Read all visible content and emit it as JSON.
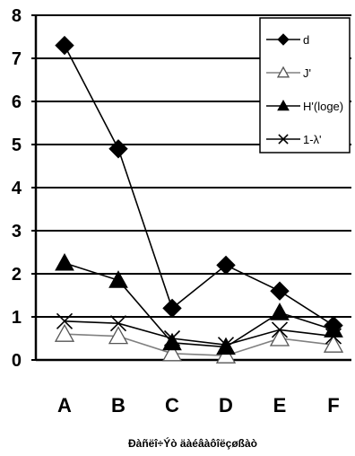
{
  "chart_data": {
    "type": "line",
    "categories": [
      "A",
      "B",
      "C",
      "D",
      "E",
      "F"
    ],
    "ylim": [
      0,
      8
    ],
    "yticks": [
      "0",
      "1",
      "2",
      "3",
      "4",
      "5",
      "6",
      "7",
      "8"
    ],
    "grid": "horizontal",
    "legend_position": "top-right",
    "xlabel": "Ðàñëî÷Ýò äàéâàôîëçøßàò",
    "ylabel": "",
    "title": "",
    "series": [
      {
        "name": "d",
        "marker": "filled-diamond",
        "color": "#000000",
        "values": [
          7.3,
          4.9,
          1.2,
          2.2,
          1.6,
          0.8
        ]
      },
      {
        "name": "J'",
        "marker": "open-triangle",
        "color": "#808080",
        "values": [
          0.6,
          0.55,
          0.15,
          0.1,
          0.5,
          0.35
        ]
      },
      {
        "name": "H'(loge)",
        "marker": "filled-triangle",
        "color": "#000000",
        "values": [
          2.25,
          1.85,
          0.4,
          0.3,
          1.1,
          0.7
        ]
      },
      {
        "name": "1-λ'",
        "marker": "cross",
        "color": "#000000",
        "values": [
          0.9,
          0.85,
          0.5,
          0.35,
          0.7,
          0.55
        ]
      }
    ]
  }
}
